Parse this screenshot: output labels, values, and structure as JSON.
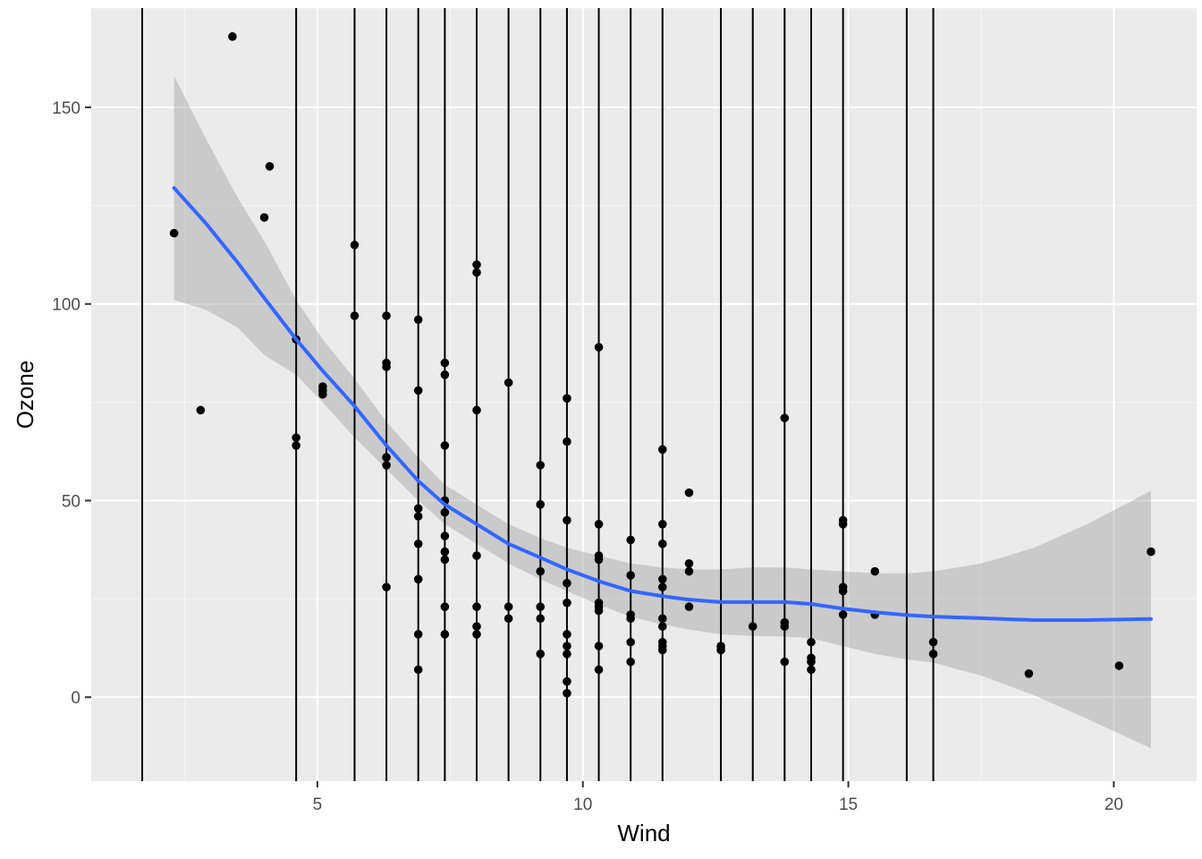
{
  "chart_data": {
    "type": "scatter",
    "title": "",
    "xlabel": "Wind",
    "ylabel": "Ozone",
    "xlim": [
      0.74,
      21.56
    ],
    "ylim": [
      -21.35,
      175.25
    ],
    "x_ticks": [
      5,
      10,
      15,
      20
    ],
    "x_tick_labels": [
      "5",
      "10",
      "15",
      "20"
    ],
    "y_ticks": [
      0,
      50,
      100,
      150
    ],
    "y_tick_labels": [
      "0",
      "50",
      "100",
      "150"
    ],
    "grid": true,
    "legend": "none",
    "colors": {
      "panel_background": "#ebebeb",
      "grid_major": "#ffffff",
      "grid_minor": "#f5f5f5",
      "points": "#000000",
      "vlines": "#000000",
      "smooth_line": "#3366ff",
      "ribbon": "#999999"
    },
    "vlines": [
      1.7,
      4.6,
      5.7,
      6.3,
      6.9,
      7.4,
      8.0,
      8.6,
      9.2,
      9.7,
      10.3,
      10.9,
      11.5,
      12.6,
      13.2,
      13.8,
      14.3,
      14.9,
      16.1,
      16.6
    ],
    "points": [
      [
        2.3,
        118
      ],
      [
        2.8,
        73
      ],
      [
        3.4,
        168
      ],
      [
        4.0,
        122
      ],
      [
        4.1,
        135
      ],
      [
        4.6,
        91
      ],
      [
        4.6,
        66
      ],
      [
        4.6,
        64
      ],
      [
        5.1,
        79
      ],
      [
        5.1,
        78
      ],
      [
        5.1,
        77
      ],
      [
        5.7,
        115
      ],
      [
        5.7,
        97
      ],
      [
        6.3,
        97
      ],
      [
        6.3,
        85
      ],
      [
        6.3,
        84
      ],
      [
        6.3,
        61
      ],
      [
        6.3,
        59
      ],
      [
        6.3,
        28
      ],
      [
        6.9,
        96
      ],
      [
        6.9,
        78
      ],
      [
        6.9,
        48
      ],
      [
        6.9,
        46
      ],
      [
        6.9,
        39
      ],
      [
        6.9,
        30
      ],
      [
        6.9,
        16
      ],
      [
        6.9,
        7
      ],
      [
        7.4,
        85
      ],
      [
        7.4,
        82
      ],
      [
        7.4,
        64
      ],
      [
        7.4,
        50
      ],
      [
        7.4,
        47
      ],
      [
        7.4,
        41
      ],
      [
        7.4,
        37
      ],
      [
        7.4,
        35
      ],
      [
        7.4,
        23
      ],
      [
        7.4,
        16
      ],
      [
        8.0,
        110
      ],
      [
        8.0,
        108
      ],
      [
        8.0,
        73
      ],
      [
        8.0,
        36
      ],
      [
        8.0,
        23
      ],
      [
        8.0,
        18
      ],
      [
        8.0,
        16
      ],
      [
        8.6,
        80
      ],
      [
        8.6,
        23
      ],
      [
        8.6,
        20
      ],
      [
        9.2,
        59
      ],
      [
        9.2,
        49
      ],
      [
        9.2,
        32
      ],
      [
        9.2,
        23
      ],
      [
        9.2,
        20
      ],
      [
        9.2,
        11
      ],
      [
        9.7,
        76
      ],
      [
        9.7,
        65
      ],
      [
        9.7,
        45
      ],
      [
        9.7,
        29
      ],
      [
        9.7,
        24
      ],
      [
        9.7,
        16
      ],
      [
        9.7,
        13
      ],
      [
        9.7,
        11
      ],
      [
        9.7,
        4
      ],
      [
        9.7,
        1
      ],
      [
        10.3,
        89
      ],
      [
        10.3,
        44
      ],
      [
        10.3,
        36
      ],
      [
        10.3,
        35
      ],
      [
        10.3,
        24
      ],
      [
        10.3,
        23
      ],
      [
        10.3,
        22
      ],
      [
        10.3,
        13
      ],
      [
        10.3,
        7
      ],
      [
        10.9,
        40
      ],
      [
        10.9,
        31
      ],
      [
        10.9,
        21
      ],
      [
        10.9,
        20
      ],
      [
        10.9,
        14
      ],
      [
        10.9,
        9
      ],
      [
        11.5,
        63
      ],
      [
        11.5,
        44
      ],
      [
        11.5,
        39
      ],
      [
        11.5,
        30
      ],
      [
        11.5,
        28
      ],
      [
        11.5,
        20
      ],
      [
        11.5,
        18
      ],
      [
        11.5,
        14
      ],
      [
        11.5,
        13
      ],
      [
        11.5,
        12
      ],
      [
        12.0,
        52
      ],
      [
        12.0,
        34
      ],
      [
        12.0,
        32
      ],
      [
        12.0,
        23
      ],
      [
        12.6,
        13
      ],
      [
        12.6,
        12
      ],
      [
        13.2,
        18
      ],
      [
        13.8,
        71
      ],
      [
        13.8,
        19
      ],
      [
        13.8,
        18
      ],
      [
        13.8,
        9
      ],
      [
        14.3,
        14
      ],
      [
        14.3,
        10
      ],
      [
        14.3,
        9
      ],
      [
        14.3,
        7
      ],
      [
        14.9,
        45
      ],
      [
        14.9,
        44
      ],
      [
        14.9,
        28
      ],
      [
        14.9,
        27
      ],
      [
        14.9,
        21
      ],
      [
        15.5,
        32
      ],
      [
        15.5,
        21
      ],
      [
        16.6,
        14
      ],
      [
        16.6,
        11
      ],
      [
        18.4,
        6
      ],
      [
        20.1,
        8
      ],
      [
        20.7,
        37
      ]
    ],
    "smooth": {
      "method": "loess",
      "x": [
        2.3,
        2.9,
        3.5,
        4.0,
        4.6,
        5.1,
        5.7,
        6.3,
        6.9,
        7.4,
        8.0,
        8.6,
        9.2,
        9.7,
        10.3,
        10.9,
        11.5,
        12.0,
        12.6,
        13.2,
        13.8,
        14.3,
        14.9,
        15.5,
        16.1,
        16.6,
        17.5,
        18.5,
        19.5,
        20.7
      ],
      "y": [
        129.5,
        120.5,
        110.5,
        101.5,
        91,
        83,
        74,
        64,
        55,
        49,
        44,
        39,
        35.5,
        32.5,
        29.5,
        27,
        25.7,
        24.8,
        24.2,
        24.2,
        24.2,
        23.7,
        22.5,
        21.6,
        20.9,
        20.5,
        20.1,
        19.6,
        19.6,
        19.9
      ],
      "upper": [
        158,
        142,
        127,
        116,
        101,
        91,
        81,
        70,
        61,
        54,
        49,
        44,
        40.5,
        38,
        36,
        34,
        33,
        32.5,
        32.5,
        33,
        33,
        32.5,
        32,
        31.5,
        31.5,
        32,
        34,
        38,
        44,
        52.5
      ],
      "lower": [
        101,
        98.5,
        94,
        87,
        82,
        75,
        66,
        58,
        50,
        44,
        39,
        34,
        30,
        27,
        23.5,
        20.5,
        18.5,
        17.2,
        16,
        15.6,
        15.4,
        15,
        13,
        11,
        9.6,
        8.8,
        5.5,
        0.5,
        -5.5,
        -13
      ]
    }
  }
}
